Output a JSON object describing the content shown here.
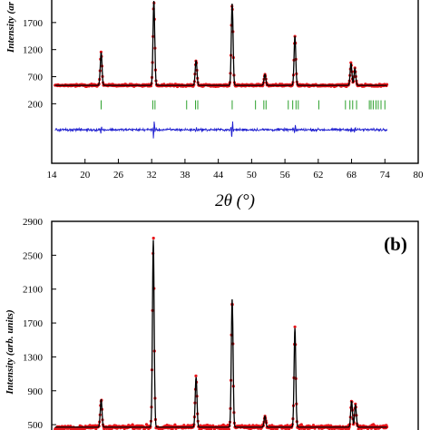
{
  "chart_data": [
    {
      "panel": "a",
      "type": "scatter",
      "ylabel": "Intensity (ar",
      "xlabel": "2θ (°)",
      "x_ticks": [
        "14",
        "20",
        "26",
        "32",
        "38",
        "44",
        "50",
        "56",
        "62",
        "68",
        "74",
        "80"
      ],
      "y_ticks": [
        "1700",
        "1200",
        "700",
        "200"
      ],
      "xlim": [
        14,
        80
      ],
      "ylim": [
        -900,
        2150
      ],
      "series": [
        {
          "role": "observed",
          "color": "#e8141a",
          "marker": "dot"
        },
        {
          "role": "calculated",
          "color": "#000000",
          "marker": "line"
        },
        {
          "role": "bragg-positions",
          "color": "#2ca02c",
          "marker": "tick"
        },
        {
          "role": "difference",
          "color": "#1f1fd0",
          "marker": "line"
        }
      ],
      "background": 540,
      "peaks": [
        {
          "x": 22.9,
          "y": 1150
        },
        {
          "x": 32.4,
          "y": 2100
        },
        {
          "x": 40.0,
          "y": 1000
        },
        {
          "x": 46.5,
          "y": 2050
        },
        {
          "x": 52.4,
          "y": 740
        },
        {
          "x": 57.8,
          "y": 1450
        },
        {
          "x": 67.9,
          "y": 950
        },
        {
          "x": 68.6,
          "y": 850
        }
      ],
      "bragg_positions": [
        22.9,
        32.2,
        32.6,
        38.3,
        39.9,
        40.3,
        46.5,
        50.7,
        52.2,
        52.6,
        56.6,
        57.4,
        58.0,
        58.4,
        62.1,
        66.9,
        67.7,
        68.2,
        68.9,
        71.2,
        71.5,
        71.9,
        72.4,
        72.8,
        73.3,
        74.0
      ],
      "bragg_y": 180,
      "difference_baseline": -280
    },
    {
      "panel": "b",
      "type": "scatter",
      "label": "(b)",
      "ylabel": "Intensity (arb. units)",
      "y_ticks": [
        "2900",
        "2500",
        "2100",
        "1700",
        "1300",
        "900",
        "500"
      ],
      "ylim": [
        330,
        2900
      ],
      "xlim": [
        14,
        80
      ],
      "series": [
        {
          "role": "observed",
          "color": "#e8141a",
          "marker": "dot"
        },
        {
          "role": "calculated",
          "color": "#000000",
          "marker": "line"
        }
      ],
      "background": 470,
      "peaks": [
        {
          "x": 22.9,
          "y": 800
        },
        {
          "x": 32.3,
          "y": 2680
        },
        {
          "x": 40.0,
          "y": 1060
        },
        {
          "x": 46.5,
          "y": 1980
        },
        {
          "x": 52.4,
          "y": 600
        },
        {
          "x": 57.8,
          "y": 1640
        },
        {
          "x": 68.0,
          "y": 780
        },
        {
          "x": 68.7,
          "y": 740
        }
      ]
    }
  ]
}
